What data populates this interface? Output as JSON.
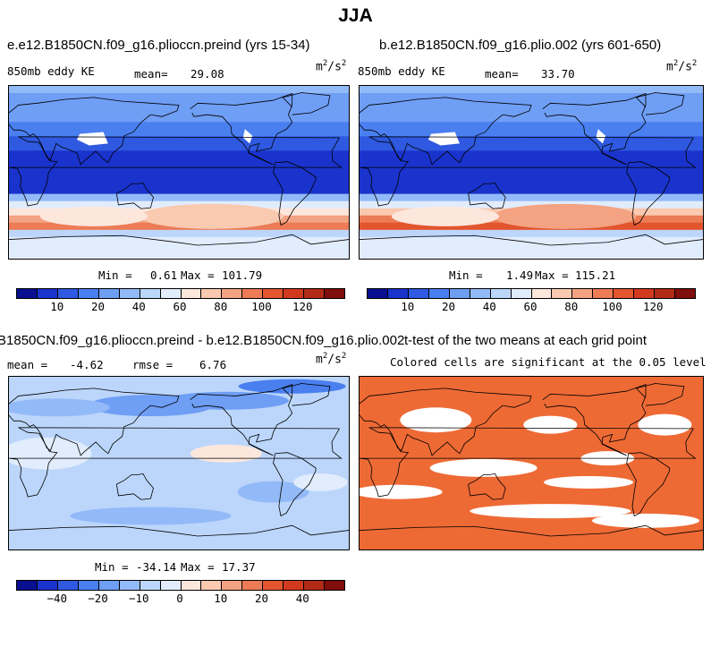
{
  "title": "JJA",
  "panels": {
    "top_left": {
      "case_title": "e.e12.B1850CN.f09_g16.plioccn.preind (yrs 15-34)",
      "variable": "850mb eddy KE",
      "mean_label": "mean=",
      "mean_value": "29.08",
      "units": "m",
      "units_sup1": "2",
      "units_mid": "/s",
      "units_sup2": "2",
      "min_label": "Min =",
      "min_value": "0.61",
      "max_label": "Max =",
      "max_value": "101.79"
    },
    "top_right": {
      "case_title": "b.e12.B1850CN.f09_g16.plio.002 (yrs 601-650)",
      "variable": "850mb eddy KE",
      "mean_label": "mean=",
      "mean_value": "33.70",
      "units": "m",
      "units_sup1": "2",
      "units_mid": "/s",
      "units_sup2": "2",
      "min_label": "Min =",
      "min_value": "1.49",
      "max_label": "Max =",
      "max_value": "115.21"
    },
    "bottom_left": {
      "case_title": "B1850CN.f09_g16.plioccn.preind - b.e12.B1850CN.f09_g16.plio.002",
      "mean_label": "mean =",
      "mean_value": "-4.62",
      "rmse_label": "rmse =",
      "rmse_value": "6.76",
      "units": "m",
      "units_sup1": "2",
      "units_mid": "/s",
      "units_sup2": "2",
      "min_label": "Min =",
      "min_value": "-34.14",
      "max_label": "Max =",
      "max_value": "17.37"
    },
    "bottom_right": {
      "case_title": "t-test of the two means at each grid point",
      "note": "Colored cells are significant at the 0.05 level"
    }
  },
  "colors": {
    "significant": "#ee6a35",
    "land_outline": "#000000"
  },
  "chart_data": [
    {
      "type": "heatmap",
      "name": "e.e12.B1850CN.f09_g16.plioccn.preind 850mb eddy KE",
      "units": "m2/s2",
      "mean": 29.08,
      "min": 0.61,
      "max": 101.79,
      "colorbar": {
        "levels": [
          5,
          10,
          15,
          20,
          30,
          40,
          50,
          60,
          70,
          80,
          90,
          100,
          110,
          120,
          130
        ],
        "tick_labels": [
          "10",
          "20",
          "40",
          "60",
          "80",
          "100",
          "120"
        ],
        "colors": [
          "#08108f",
          "#1a33cc",
          "#2e59e0",
          "#4a7ff0",
          "#6f9ef5",
          "#93baf8",
          "#bcd6fb",
          "#e1ecfd",
          "#fde7dc",
          "#f9c9b0",
          "#f3a282",
          "#ec7b56",
          "#e2552f",
          "#d13a1f",
          "#b12b17",
          "#800e0c"
        ]
      }
    },
    {
      "type": "heatmap",
      "name": "b.e12.B1850CN.f09_g16.plio.002 850mb eddy KE",
      "units": "m2/s2",
      "mean": 33.7,
      "min": 1.49,
      "max": 115.21,
      "colorbar": {
        "levels": [
          5,
          10,
          15,
          20,
          30,
          40,
          50,
          60,
          70,
          80,
          90,
          100,
          110,
          120,
          130
        ],
        "tick_labels": [
          "10",
          "20",
          "40",
          "60",
          "80",
          "100",
          "120"
        ],
        "colors": [
          "#08108f",
          "#1a33cc",
          "#2e59e0",
          "#4a7ff0",
          "#6f9ef5",
          "#93baf8",
          "#bcd6fb",
          "#e1ecfd",
          "#fde7dc",
          "#f9c9b0",
          "#f3a282",
          "#ec7b56",
          "#e2552f",
          "#d13a1f",
          "#b12b17",
          "#800e0c"
        ]
      }
    },
    {
      "type": "heatmap",
      "name": "difference (plioccn.preind - plio.002)",
      "units": "m2/s2",
      "mean": -4.62,
      "rmse": 6.76,
      "min": -34.14,
      "max": 17.37,
      "colorbar": {
        "levels": [
          -50,
          -40,
          -30,
          -20,
          -15,
          -10,
          -5,
          0,
          5,
          10,
          15,
          20,
          30,
          40,
          50
        ],
        "tick_labels": [
          "-40",
          "-20",
          "-10",
          "0",
          "10",
          "20",
          "40"
        ],
        "colors": [
          "#08108f",
          "#1a33cc",
          "#2e59e0",
          "#4a7ff0",
          "#6f9ef5",
          "#93baf8",
          "#bcd6fb",
          "#e1ecfd",
          "#fde7dc",
          "#f9c9b0",
          "#f3a282",
          "#ec7b56",
          "#e2552f",
          "#d13a1f",
          "#b12b17",
          "#800e0c"
        ]
      }
    },
    {
      "type": "heatmap",
      "name": "t-test significance mask",
      "significance_level": 0.05,
      "legend": "Colored cells are significant at the 0.05 level"
    }
  ]
}
